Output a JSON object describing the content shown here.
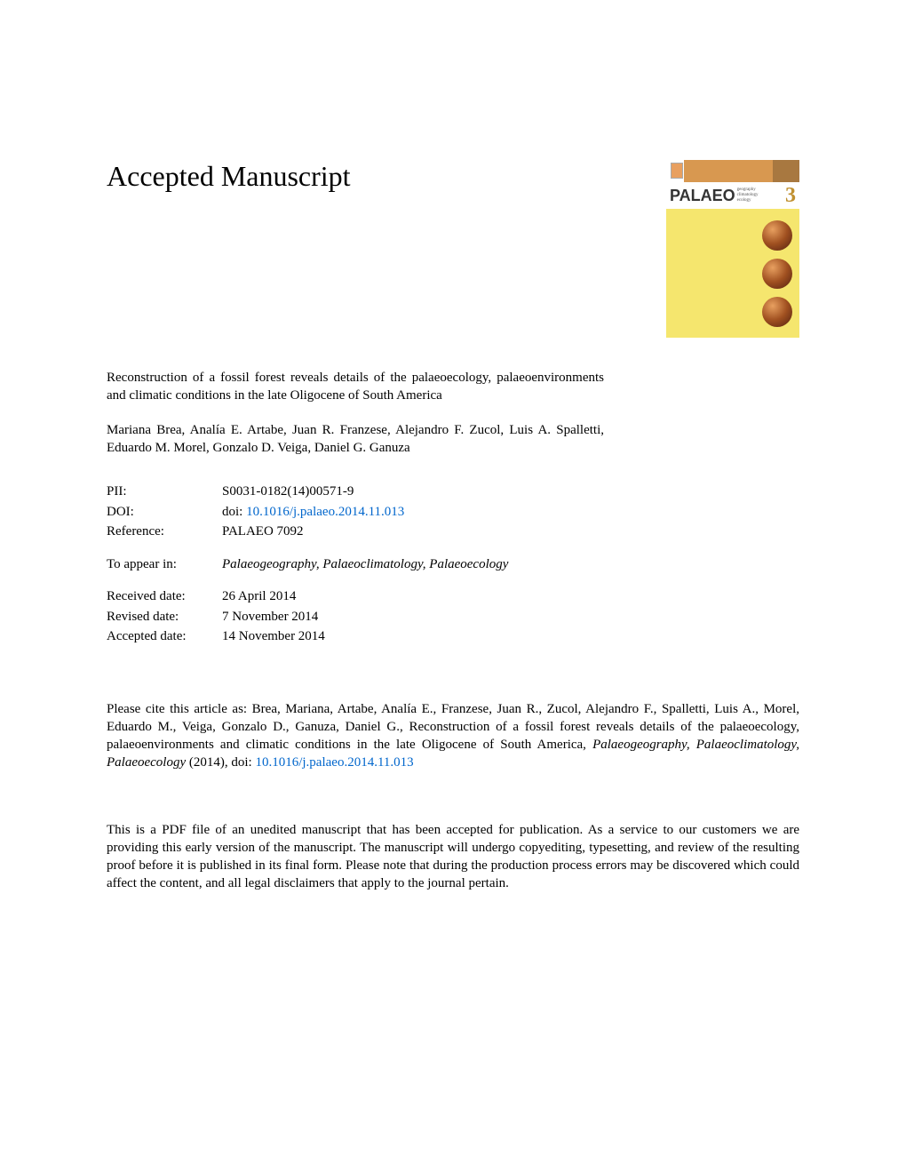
{
  "heading": "Accepted Manuscript",
  "cover": {
    "palaeo": "PALAEO",
    "subtitle1": "geography",
    "subtitle2": "climatology",
    "subtitle3": "ecology",
    "number": "3"
  },
  "title": "Reconstruction of a fossil forest reveals details of the palaeoecology, palaeoenvironments and climatic conditions in the late Oligocene of South America",
  "authors": "Mariana Brea, Analía E. Artabe, Juan R. Franzese, Alejandro F. Zucol, Luis A. Spalletti, Eduardo M. Morel, Gonzalo D. Veiga, Daniel G. Ganuza",
  "meta": {
    "pii_label": "PII:",
    "pii": "S0031-0182(14)00571-9",
    "doi_label": "DOI:",
    "doi_prefix": "doi: ",
    "doi_link": "10.1016/j.palaeo.2014.11.013",
    "reference_label": "Reference:",
    "reference": "PALAEO 7092",
    "appear_label": "To appear in:",
    "appear": "Palaeogeography, Palaeoclimatology, Palaeoecology",
    "received_label": "Received date:",
    "received": "26 April 2014",
    "revised_label": "Revised date:",
    "revised": "7 November 2014",
    "accepted_label": "Accepted date:",
    "accepted": "14 November 2014"
  },
  "citation": {
    "prefix": "Please cite this article as: Brea, Mariana, Artabe, Analía E., Franzese, Juan R., Zucol, Alejandro F., Spalletti, Luis A., Morel, Eduardo M., Veiga, Gonzalo D., Ganuza, Daniel G., Reconstruction of a fossil forest reveals details of the palaeoecology, palaeoenvironments and climatic conditions in the late Oligocene of South America, ",
    "journal": "Palaeogeography, Palaeoclimatology, Palaeoecology",
    "year": " (2014),  doi: ",
    "link": "10.1016/j.palaeo.2014.11.013"
  },
  "disclaimer": "This is a PDF file of an unedited manuscript that has been accepted for publication. As a service to our customers we are providing this early version of the manuscript. The manuscript will undergo copyediting, typesetting, and review of the resulting proof before it is published in its final form. Please note that during the production process errors may be discovered which could affect the content, and all legal disclaimers that apply to the journal pertain."
}
